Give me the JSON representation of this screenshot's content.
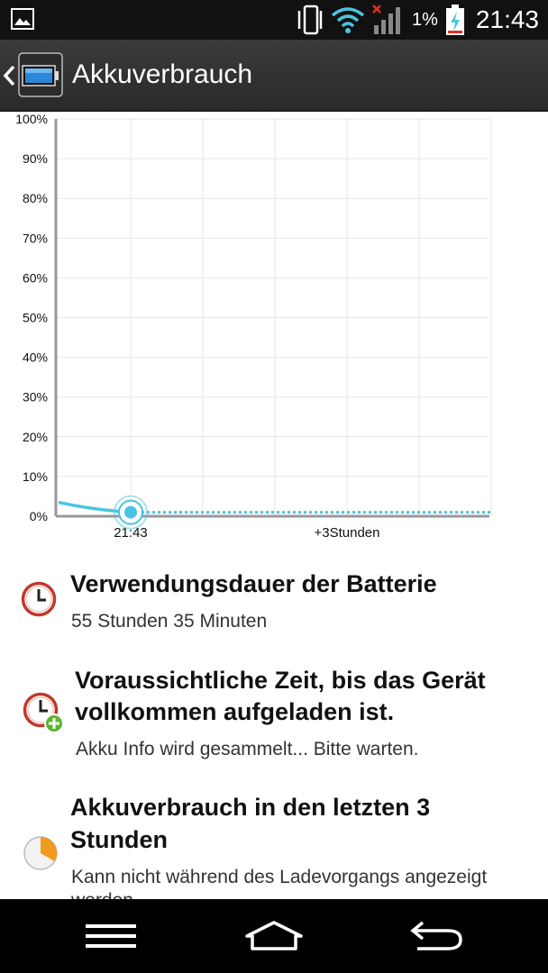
{
  "status_bar": {
    "battery_percent": "1%",
    "time": "21:43",
    "icons": [
      "image-notification-icon",
      "vibrate-icon",
      "wifi-icon",
      "signal-no-service-icon",
      "battery-charging-icon"
    ]
  },
  "action_bar": {
    "title": "Akkuverbrauch",
    "back_icon": "chevron-left-icon",
    "app_icon": "battery-icon"
  },
  "chart_data": {
    "type": "line",
    "y_ticks": [
      "100%",
      "90%",
      "80%",
      "70%",
      "60%",
      "50%",
      "40%",
      "30%",
      "20%",
      "10%",
      "0%"
    ],
    "x_labels": [
      "21:43",
      "+3Stunden"
    ],
    "ylim": [
      0,
      100
    ],
    "history": {
      "x": [
        -1,
        -0.5,
        0
      ],
      "y": [
        3.5,
        2,
        1
      ]
    },
    "projection": {
      "x": [
        0,
        5
      ],
      "y": [
        1,
        1
      ]
    },
    "current_value": 1,
    "colors": {
      "line": "#4ac4e0",
      "grid": "#e6e6e6",
      "axis": "#999999"
    }
  },
  "items": [
    {
      "icon": "clock-icon",
      "title": "Verwendungsdauer der Batterie",
      "subtitle": "55 Stunden 35 Minuten"
    },
    {
      "icon": "clock-plus-icon",
      "title_line1": "Voraussichtliche Zeit, bis das Gerät",
      "title_line2": "vollkommen aufgeladen ist.",
      "subtitle": "Akku Info wird gesammelt... Bitte warten."
    },
    {
      "icon": "pie-chart-icon",
      "title_line1": "Akkuverbrauch in den letzten 3",
      "title_line2": "Stunden",
      "subtitle_line1": "Kann nicht während des Ladevorgangs angezeigt",
      "subtitle_line2": "werden."
    }
  ],
  "nav_bar": {
    "menu_icon": "menu-icon",
    "home_icon": "home-icon",
    "back_icon": "back-arrow-icon"
  }
}
